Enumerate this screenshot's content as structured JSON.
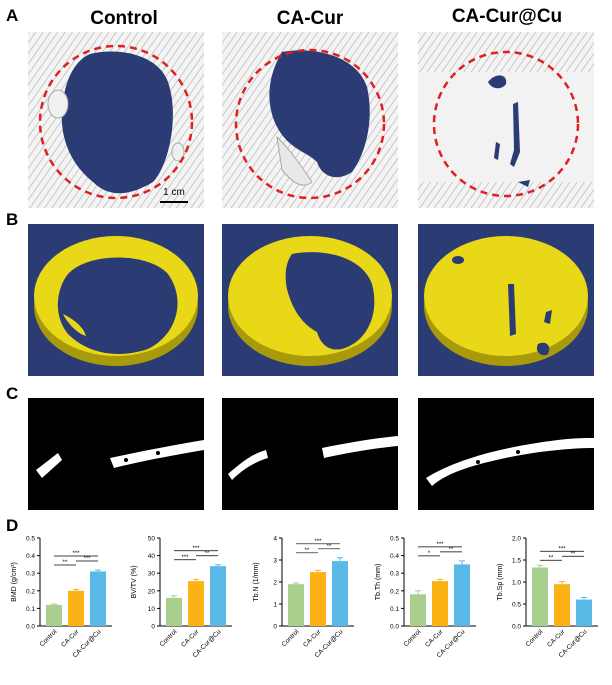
{
  "panel_letters": {
    "a": "A",
    "b": "B",
    "c": "C",
    "d": "D"
  },
  "columns": [
    "Control",
    "CA-Cur",
    "CA-Cur@Cu"
  ],
  "scale_bar_label": "1 cm",
  "colors": {
    "navy": "#2b3b74",
    "bone_yellow": "#e8d817",
    "bone_yellow_dark": "#a89a0a",
    "circle_red": "#e02020",
    "green": "#a9cf8f",
    "orange": "#fbb214",
    "blue": "#59b8e6"
  },
  "chart_data": [
    {
      "type": "bar",
      "categories": [
        "Control",
        "CA-Cur",
        "CA-Cur@Cu"
      ],
      "values": [
        0.12,
        0.2,
        0.31
      ],
      "errors": [
        0.005,
        0.008,
        0.008
      ],
      "ylabel": "BMD (g/cm³)",
      "ylim": [
        0,
        0.5
      ],
      "yticks": [
        "0.0",
        "0.1",
        "0.2",
        "0.3",
        "0.4",
        "0.5"
      ],
      "significance": [
        "**",
        "***",
        "***"
      ]
    },
    {
      "type": "bar",
      "categories": [
        "Control",
        "CA-Cur",
        "CA-Cur@Cu"
      ],
      "values": [
        16,
        25.5,
        34
      ],
      "errors": [
        1.2,
        1.0,
        0.8
      ],
      "ylabel": "BV/TV (%)",
      "ylim": [
        0,
        50
      ],
      "yticks": [
        "0",
        "10",
        "20",
        "30",
        "40",
        "50"
      ],
      "significance": [
        "***",
        "**",
        "***"
      ]
    },
    {
      "type": "bar",
      "categories": [
        "Control",
        "CA-Cur",
        "CA-Cur@Cu"
      ],
      "values": [
        1.9,
        2.45,
        2.95
      ],
      "errors": [
        0.05,
        0.08,
        0.15
      ],
      "ylabel": "Tb.N (1/mm)",
      "ylim": [
        0,
        4
      ],
      "yticks": [
        "0",
        "1",
        "2",
        "3",
        "4"
      ],
      "significance": [
        "**",
        "**",
        "***"
      ]
    },
    {
      "type": "bar",
      "categories": [
        "Control",
        "CA-Cur",
        "CA-Cur@Cu"
      ],
      "values": [
        0.18,
        0.255,
        0.35
      ],
      "errors": [
        0.02,
        0.01,
        0.02
      ],
      "ylabel": "Tb.Th (mm)",
      "ylim": [
        0,
        0.5
      ],
      "yticks": [
        "0.0",
        "0.1",
        "0.2",
        "0.3",
        "0.4",
        "0.5"
      ],
      "significance": [
        "*",
        "**",
        "***"
      ]
    },
    {
      "type": "bar",
      "categories": [
        "Control",
        "CA-Cur",
        "CA-Cur@Cu"
      ],
      "values": [
        1.33,
        0.95,
        0.6
      ],
      "errors": [
        0.05,
        0.06,
        0.05
      ],
      "ylabel": "Tb.Sp (mm)",
      "ylim": [
        0,
        2.0
      ],
      "yticks": [
        "0.0",
        "0.5",
        "1.0",
        "1.5",
        "2.0"
      ],
      "significance": [
        "**",
        "**",
        "***"
      ]
    }
  ]
}
